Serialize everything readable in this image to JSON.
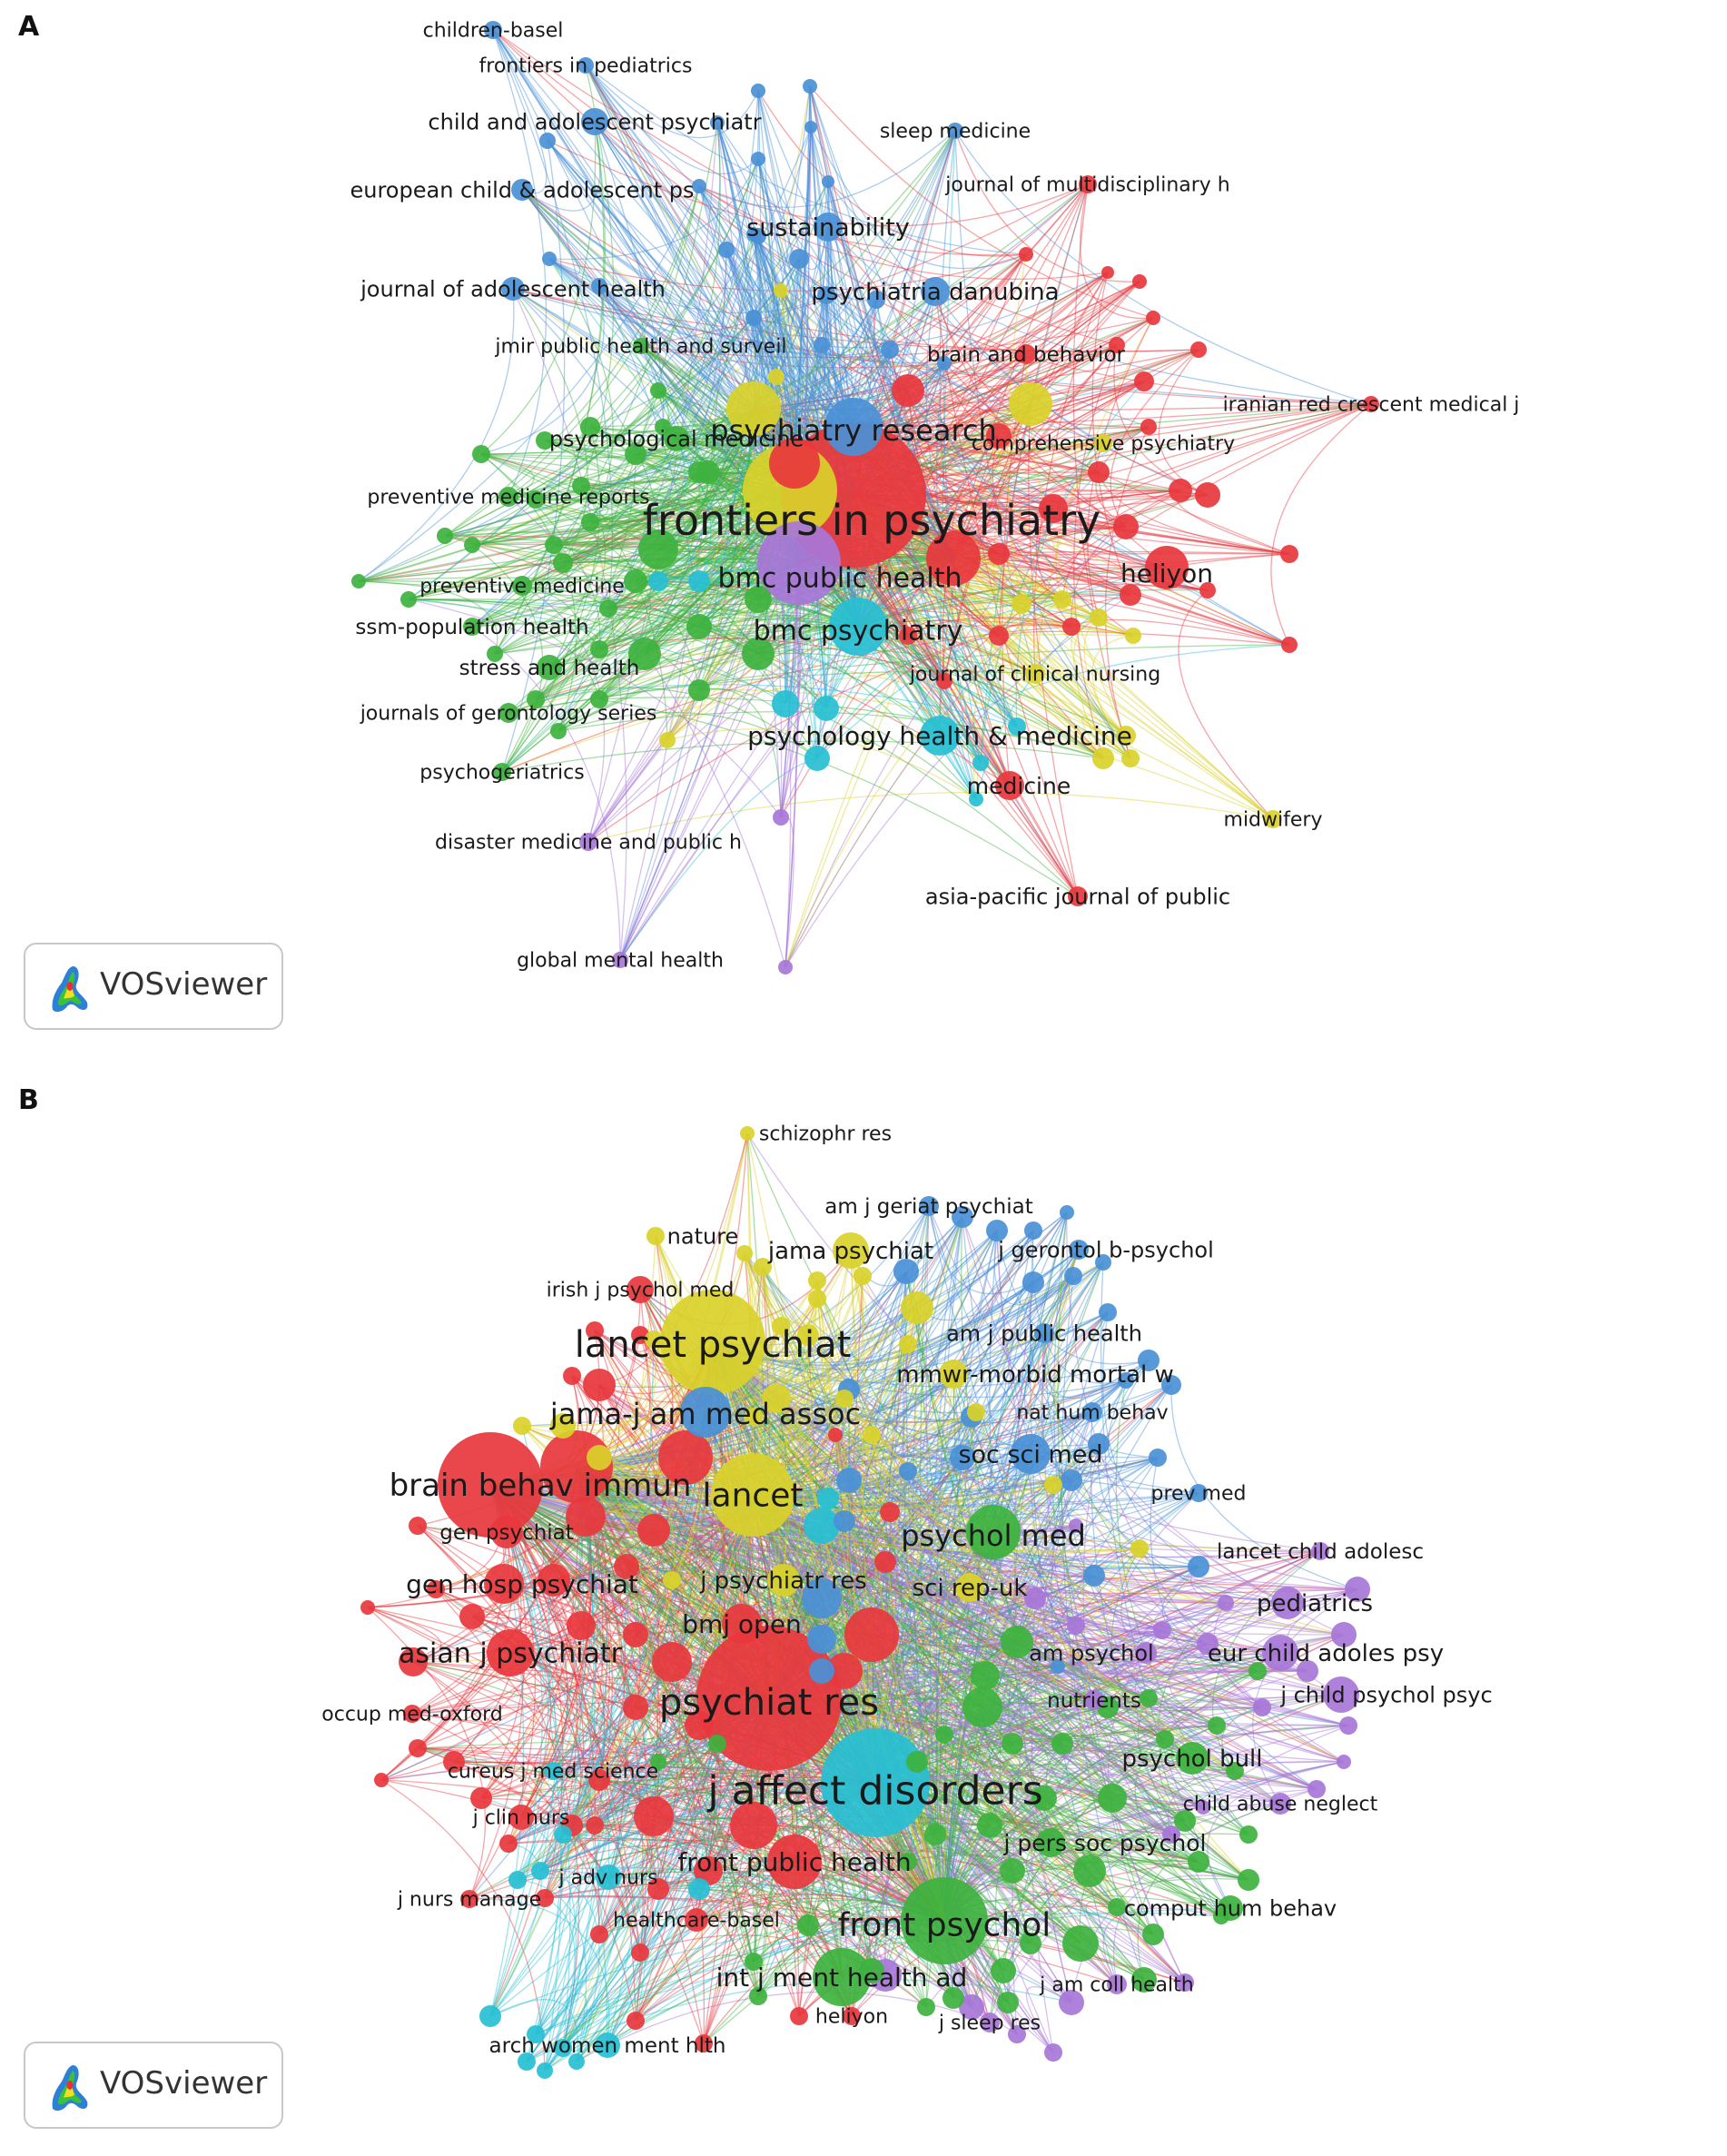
{
  "panels": [
    {
      "letter": "A",
      "logo_text": "VOSviewer",
      "clusters": {
        "red": "#e8373d",
        "green": "#3db23e",
        "blue": "#4a90d6",
        "yellow": "#d9d12a",
        "purple": "#a776d8",
        "cyan": "#27bfd4"
      },
      "labels": [
        "children-basel",
        "frontiers in pediatrics",
        "child and adolescent psychiatr",
        "sleep medicine",
        "journal of multidisciplinary h",
        "european child & adolescent ps",
        "sustainability",
        "journal of adolescent health",
        "psychiatria danubina",
        "jmir public health and surveil",
        "brain and behavior",
        "iranian red crescent medical j",
        "psychiatry research",
        "psychological medicine",
        "comprehensive psychiatry",
        "preventive medicine reports",
        "frontiers in psychiatry",
        "heliyon",
        "bmc public health",
        "preventive medicine",
        "ssm-population health",
        "bmc psychiatry",
        "stress and health",
        "journal of clinical nursing",
        "journals of gerontology series",
        "psychology health & medicine",
        "psychogeriatrics",
        "medicine",
        "midwifery",
        "disaster medicine and public h",
        "asia-pacific journal of public",
        "global mental health"
      ]
    },
    {
      "letter": "B",
      "logo_text": "VOSviewer",
      "clusters": {
        "red": "#e8373d",
        "green": "#3db23e",
        "blue": "#4a90d6",
        "yellow": "#d9d12a",
        "purple": "#a776d8",
        "cyan": "#27bfd4"
      },
      "labels": [
        "schizophr res",
        "am j geriat psychiat",
        "nature",
        "jama psychiat",
        "j gerontol b-psychol",
        "irish j psychol med",
        "lancet psychiat",
        "am j public health",
        "mmwr-morbid mortal w",
        "jama-j am med assoc",
        "nat hum behav",
        "soc sci med",
        "brain behav immun",
        "lancet",
        "prev med",
        "gen psychiat",
        "psychol med",
        "lancet child adolesc",
        "gen hosp psychiat",
        "j psychiatr res",
        "sci rep-uk",
        "pediatrics",
        "bmj open",
        "am psychol",
        "eur child adoles psy",
        "asian j psychiatr",
        "j child psychol psyc",
        "nutrients",
        "psychiat res",
        "occup med-oxford",
        "psychol bull",
        "cureus j med science",
        "j affect disorders",
        "child abuse neglect",
        "j clin nurs",
        "j pers soc psychol",
        "front public health",
        "j adv nurs",
        "j nurs manage",
        "comput hum behav",
        "healthcare-basel",
        "front psychol",
        "int j ment health ad",
        "j am coll health",
        "heliyon",
        "j sleep res",
        "arch women ment hlth"
      ]
    }
  ]
}
